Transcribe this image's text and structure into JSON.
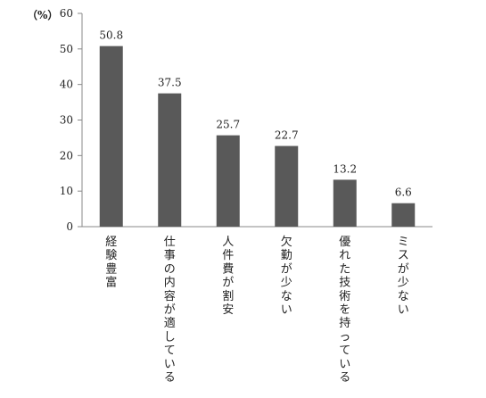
{
  "chart_data": {
    "type": "bar",
    "categories": [
      "経験豊富",
      "仕事の内容が適している",
      "人件費が割安",
      "欠勤が少ない",
      "優れた技術を持っている",
      "ミスが少ない"
    ],
    "values": [
      50.8,
      37.5,
      25.7,
      22.7,
      13.2,
      6.6
    ],
    "value_labels": [
      "50.8",
      "37.5",
      "25.7",
      "22.7",
      "13.2",
      "6.6"
    ],
    "ylim": [
      0,
      60
    ],
    "yticks": [
      0,
      10,
      20,
      30,
      40,
      50,
      60
    ],
    "ytick_labels": [
      "0",
      "10",
      "20",
      "30",
      "40",
      "50",
      "60"
    ],
    "unit_label": "（%）",
    "title": "",
    "xlabel": "",
    "ylabel": "",
    "grid": false,
    "bar_color": "#595959"
  }
}
